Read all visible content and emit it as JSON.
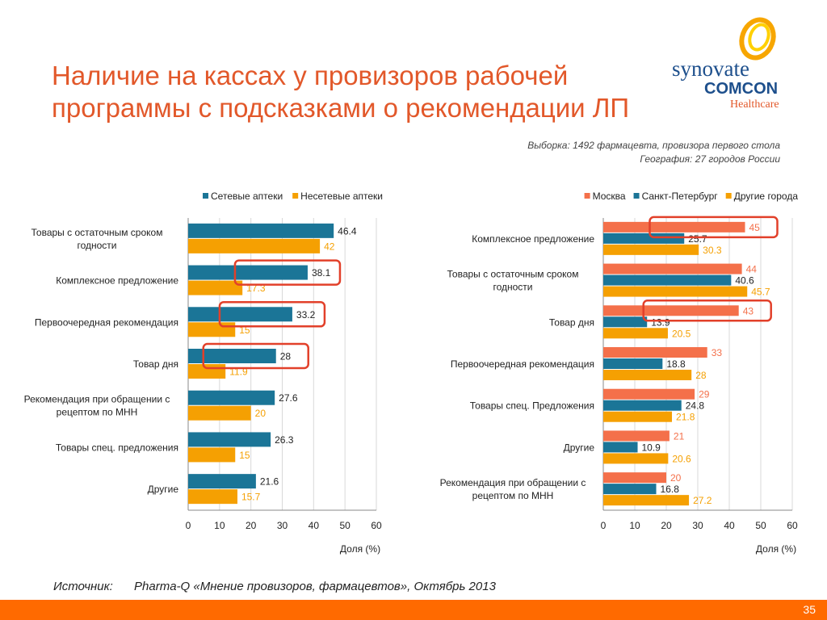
{
  "slide": {
    "title": "Наличие на кассах у провизоров рабочей программы с подсказками о рекомендации ЛП",
    "sample_line1": "Выборка: 1492 фармацевта, провизора первого стола",
    "sample_line2": "География: 27 городов  России",
    "source_label": "Источник:",
    "source_text": "Pharma-Q «Мнение провизоров, фармацевтов», Октябрь 2013",
    "page_number": "35"
  },
  "logo": {
    "line1": "synovate",
    "line2": "COMCON",
    "line3": "Healthcare"
  },
  "colors": {
    "title": "#e2582a",
    "chain": "#1b7597",
    "nonchain": "#f5a002",
    "moscow": "#f4704a",
    "spb": "#1b7597",
    "other_cities": "#f5a002",
    "highlight": "#e2402a",
    "footer": "#ff6a00"
  },
  "chart_data": [
    {
      "type": "bar",
      "orientation": "horizontal",
      "xlabel": "Доля (%)",
      "xlim": [
        0,
        60
      ],
      "xticks": [
        0,
        10,
        20,
        30,
        40,
        50,
        60
      ],
      "legend_position": "top-right",
      "grid": true,
      "categories": [
        [
          "Товары с остаточным сроком",
          "годности"
        ],
        [
          "Комплексное предложение"
        ],
        [
          "Первоочередная рекомендация"
        ],
        [
          "Товар дня"
        ],
        [
          "Рекомендация при обращении с",
          "рецептом по МНН"
        ],
        [
          "Товары спец. предложения"
        ],
        [
          "Другие"
        ]
      ],
      "series": [
        {
          "name": "Сетевые аптеки",
          "values": [
            46.4,
            38.1,
            33.2,
            28,
            27.6,
            26.3,
            21.6
          ]
        },
        {
          "name": "Несетевые аптеки",
          "values": [
            42,
            17.3,
            15,
            11.9,
            20,
            15,
            15.7
          ]
        }
      ],
      "highlights": [
        {
          "category_index": 1,
          "series_index": 0
        },
        {
          "category_index": 2,
          "series_index": 0
        },
        {
          "category_index": 3,
          "series_index": 0
        }
      ]
    },
    {
      "type": "bar",
      "orientation": "horizontal",
      "xlabel": "Доля (%)",
      "xlim": [
        0,
        60
      ],
      "xticks": [
        0,
        10,
        20,
        30,
        40,
        50,
        60
      ],
      "legend_position": "top-right",
      "grid": true,
      "categories": [
        [
          "Комплексное предложение"
        ],
        [
          "Товары с остаточным сроком",
          "годности"
        ],
        [
          "Товар дня"
        ],
        [
          "Первоочередная рекомендация"
        ],
        [
          "Товары спец. Предложения"
        ],
        [
          "Другие"
        ],
        [
          "Рекомендация при обращении с",
          "рецептом по МНН"
        ]
      ],
      "series": [
        {
          "name": "Москва",
          "values": [
            45,
            44,
            43,
            33,
            29,
            21,
            20
          ]
        },
        {
          "name": "Санкт-Петербург",
          "values": [
            25.7,
            40.6,
            13.9,
            18.8,
            24.8,
            10.9,
            16.8
          ]
        },
        {
          "name": "Другие города",
          "values": [
            30.3,
            45.7,
            20.5,
            28,
            21.8,
            20.6,
            27.2
          ]
        }
      ],
      "highlights": [
        {
          "category_index": 0,
          "series_index": 0
        },
        {
          "category_index": 2,
          "series_index": 0
        }
      ]
    }
  ]
}
